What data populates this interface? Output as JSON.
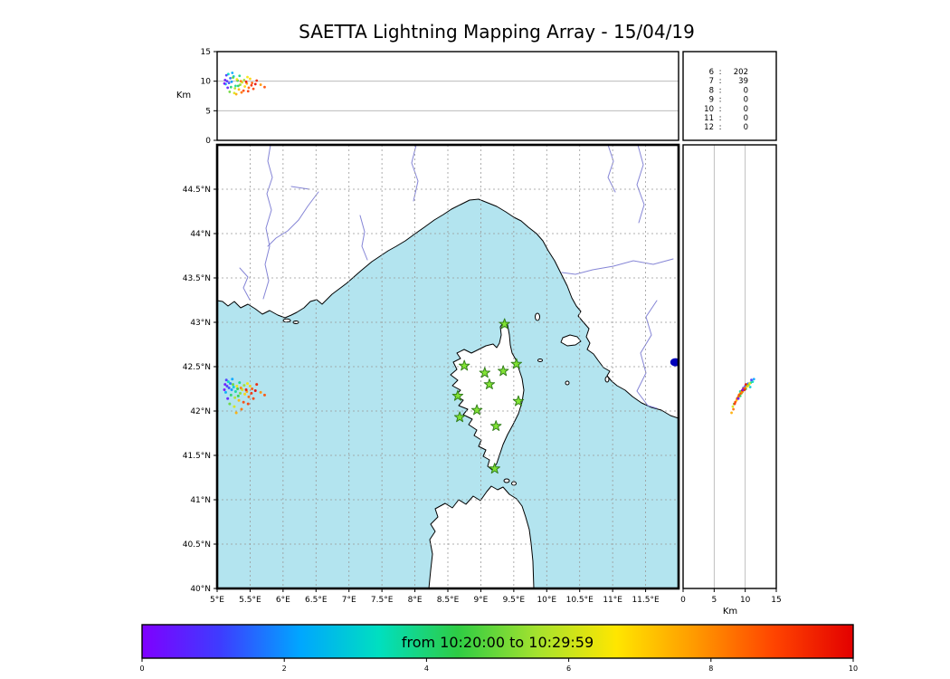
{
  "title": "SAETTA Lightning Mapping Array - 15/04/19",
  "colors": {
    "sea": "#b3e4ef",
    "land": "#ffffff",
    "river": "#8585d6",
    "grid": "#999999",
    "panel_grid": "#b0b0b0",
    "station_marker_fill": "#7ce32a",
    "station_marker_edge": "#2c7a12",
    "blue_marker": "#0000bb",
    "highlight_count": "#cc0000"
  },
  "top_panel": {
    "ylabel": "Km",
    "yticks": [
      "0",
      "5",
      "10",
      "15"
    ],
    "ylim": [
      0,
      15
    ],
    "gridlines_at": [
      5,
      10
    ]
  },
  "right_panel": {
    "xlabel": "Km",
    "xticks": [
      "0",
      "5",
      "10",
      "15"
    ],
    "xlim": [
      0,
      15
    ],
    "gridlines_at": [
      5,
      10
    ]
  },
  "station_counts": {
    "separator": ":",
    "rows": [
      {
        "stations": "6",
        "count": "202",
        "color": "#000000"
      },
      {
        "stations": "7",
        "count": "39",
        "color": "#cc0000"
      },
      {
        "stations": "8",
        "count": "0",
        "color": "#000000"
      },
      {
        "stations": "9",
        "count": "0",
        "color": "#000000"
      },
      {
        "stations": "10",
        "count": "0",
        "color": "#000000"
      },
      {
        "stations": "11",
        "count": "0",
        "color": "#000000"
      },
      {
        "stations": "12",
        "count": "0",
        "color": "#000000"
      }
    ]
  },
  "map": {
    "lon_range": [
      5,
      12
    ],
    "lat_range": [
      40,
      45
    ],
    "lat_ticks": [
      {
        "v": 44.5,
        "label": "44.5°N"
      },
      {
        "v": 44,
        "label": "44°N"
      },
      {
        "v": 43.5,
        "label": "43.5°N"
      },
      {
        "v": 43,
        "label": "43°N"
      },
      {
        "v": 42.5,
        "label": "42.5°N"
      },
      {
        "v": 42,
        "label": "42°N"
      },
      {
        "v": 41.5,
        "label": "41.5°N"
      },
      {
        "v": 41,
        "label": "41°N"
      },
      {
        "v": 40.5,
        "label": "40.5°N"
      },
      {
        "v": 40,
        "label": "40°N"
      }
    ],
    "lon_ticks": [
      {
        "v": 5,
        "label": "5°E"
      },
      {
        "v": 5.5,
        "label": "5.5°E"
      },
      {
        "v": 6,
        "label": "6°E"
      },
      {
        "v": 6.5,
        "label": "6.5°E"
      },
      {
        "v": 7,
        "label": "7°E"
      },
      {
        "v": 7.5,
        "label": "7.5°E"
      },
      {
        "v": 8,
        "label": "8°E"
      },
      {
        "v": 8.5,
        "label": "8.5°E"
      },
      {
        "v": 9,
        "label": "9°E"
      },
      {
        "v": 9.5,
        "label": "9.5°E"
      },
      {
        "v": 10,
        "label": "10°E"
      },
      {
        "v": 10.5,
        "label": "10.5°E"
      },
      {
        "v": 11,
        "label": "11°E"
      },
      {
        "v": 11.5,
        "label": "11.5°E"
      }
    ]
  },
  "colorbar": {
    "label": "from 10:20:00 to 10:29:59",
    "ticks": [
      "0",
      "2",
      "4",
      "6",
      "8",
      "10"
    ],
    "range": [
      0,
      10
    ],
    "colors": [
      "#7f00ff",
      "#3d3dff",
      "#00a6ff",
      "#00dfc0",
      "#2ecc44",
      "#a5e22e",
      "#ffe600",
      "#ff9900",
      "#ff4400",
      "#e30000"
    ]
  },
  "chart_data": {
    "type": "scatter",
    "title": "SAETTA Lightning Mapping Array - 15/04/19",
    "time_window": {
      "from": "10:20:00",
      "to": "10:29:59"
    },
    "color_scale_minutes": [
      0,
      10
    ],
    "panels": [
      {
        "name": "altitude-vs-longitude",
        "x": "longitude_deg_e",
        "y": "altitude_km",
        "xlim": [
          5,
          12
        ],
        "ylim": [
          0,
          15
        ]
      },
      {
        "name": "plan-view-map",
        "x": "longitude_deg_e",
        "y": "latitude_deg_n",
        "xlim": [
          5,
          12
        ],
        "ylim": [
          40,
          45
        ]
      },
      {
        "name": "altitude-vs-latitude",
        "x": "altitude_km",
        "y": "latitude_deg_n",
        "xlim": [
          0,
          15
        ],
        "ylim": [
          40,
          45
        ]
      }
    ],
    "station_histogram": {
      "categories": [
        "6",
        "7",
        "8",
        "9",
        "10",
        "11",
        "12"
      ],
      "values": [
        202,
        39,
        0,
        0,
        0,
        0,
        0
      ]
    },
    "lma_stations_lon_lat": [
      [
        9.36,
        42.98
      ],
      [
        8.75,
        42.51
      ],
      [
        9.06,
        42.43
      ],
      [
        9.34,
        42.45
      ],
      [
        9.54,
        42.53
      ],
      [
        9.13,
        42.3
      ],
      [
        8.65,
        42.17
      ],
      [
        9.57,
        42.11
      ],
      [
        8.94,
        42.01
      ],
      [
        8.68,
        41.93
      ],
      [
        9.23,
        41.83
      ],
      [
        9.21,
        41.35
      ]
    ],
    "blue_marker_lon_lat": [
      11.95,
      42.55
    ],
    "sources_lon_lat_altkm_minute": [
      [
        5.12,
        42.3,
        10.2,
        0.3
      ],
      [
        5.15,
        42.28,
        10.0,
        0.8
      ],
      [
        5.18,
        42.26,
        9.7,
        1.2
      ],
      [
        5.2,
        42.31,
        10.5,
        1.6
      ],
      [
        5.22,
        42.24,
        9.9,
        2.0
      ],
      [
        5.13,
        42.21,
        9.5,
        2.4
      ],
      [
        5.25,
        42.27,
        10.8,
        2.9
      ],
      [
        5.17,
        42.33,
        11.2,
        3.3
      ],
      [
        5.28,
        42.22,
        9.2,
        3.7
      ],
      [
        5.21,
        42.18,
        9.0,
        4.1
      ],
      [
        5.31,
        42.25,
        10.1,
        4.5
      ],
      [
        5.24,
        42.3,
        10.6,
        4.9
      ],
      [
        5.35,
        42.2,
        9.4,
        5.3
      ],
      [
        5.27,
        42.15,
        8.8,
        5.7
      ],
      [
        5.38,
        42.24,
        9.8,
        6.1
      ],
      [
        5.3,
        42.28,
        10.3,
        6.5
      ],
      [
        5.42,
        42.19,
        9.1,
        6.9
      ],
      [
        5.33,
        42.12,
        8.6,
        7.3
      ],
      [
        5.45,
        42.22,
        9.6,
        7.7
      ],
      [
        5.36,
        42.26,
        10.0,
        8.1
      ],
      [
        5.48,
        42.16,
        8.9,
        8.5
      ],
      [
        5.4,
        42.1,
        8.4,
        8.9
      ],
      [
        5.52,
        42.2,
        9.3,
        9.3
      ],
      [
        5.44,
        42.24,
        9.9,
        9.7
      ],
      [
        5.14,
        42.35,
        11.0,
        1.0
      ],
      [
        5.19,
        42.08,
        8.2,
        5.0
      ],
      [
        5.26,
        42.05,
        8.0,
        6.2
      ],
      [
        5.5,
        42.28,
        10.4,
        7.0
      ],
      [
        5.55,
        42.14,
        8.7,
        9.0
      ],
      [
        5.23,
        42.36,
        11.4,
        2.2
      ],
      [
        5.34,
        42.32,
        10.9,
        3.8
      ],
      [
        5.46,
        42.31,
        10.7,
        6.6
      ],
      [
        5.29,
        41.98,
        7.8,
        7.5
      ],
      [
        5.37,
        42.02,
        8.1,
        8.3
      ],
      [
        5.58,
        42.23,
        9.5,
        9.9
      ],
      [
        5.16,
        42.14,
        8.9,
        0.5
      ],
      [
        5.41,
        42.29,
        10.2,
        5.5
      ],
      [
        5.53,
        42.25,
        9.7,
        8.7
      ],
      [
        5.11,
        42.24,
        9.6,
        0.1
      ],
      [
        5.32,
        42.17,
        9.2,
        4.3
      ],
      [
        5.66,
        42.21,
        9.4,
        7.9
      ],
      [
        5.72,
        42.18,
        9.0,
        8.8
      ],
      [
        5.6,
        42.3,
        10.1,
        9.5
      ],
      [
        5.47,
        42.08,
        8.3,
        9.1
      ]
    ]
  }
}
